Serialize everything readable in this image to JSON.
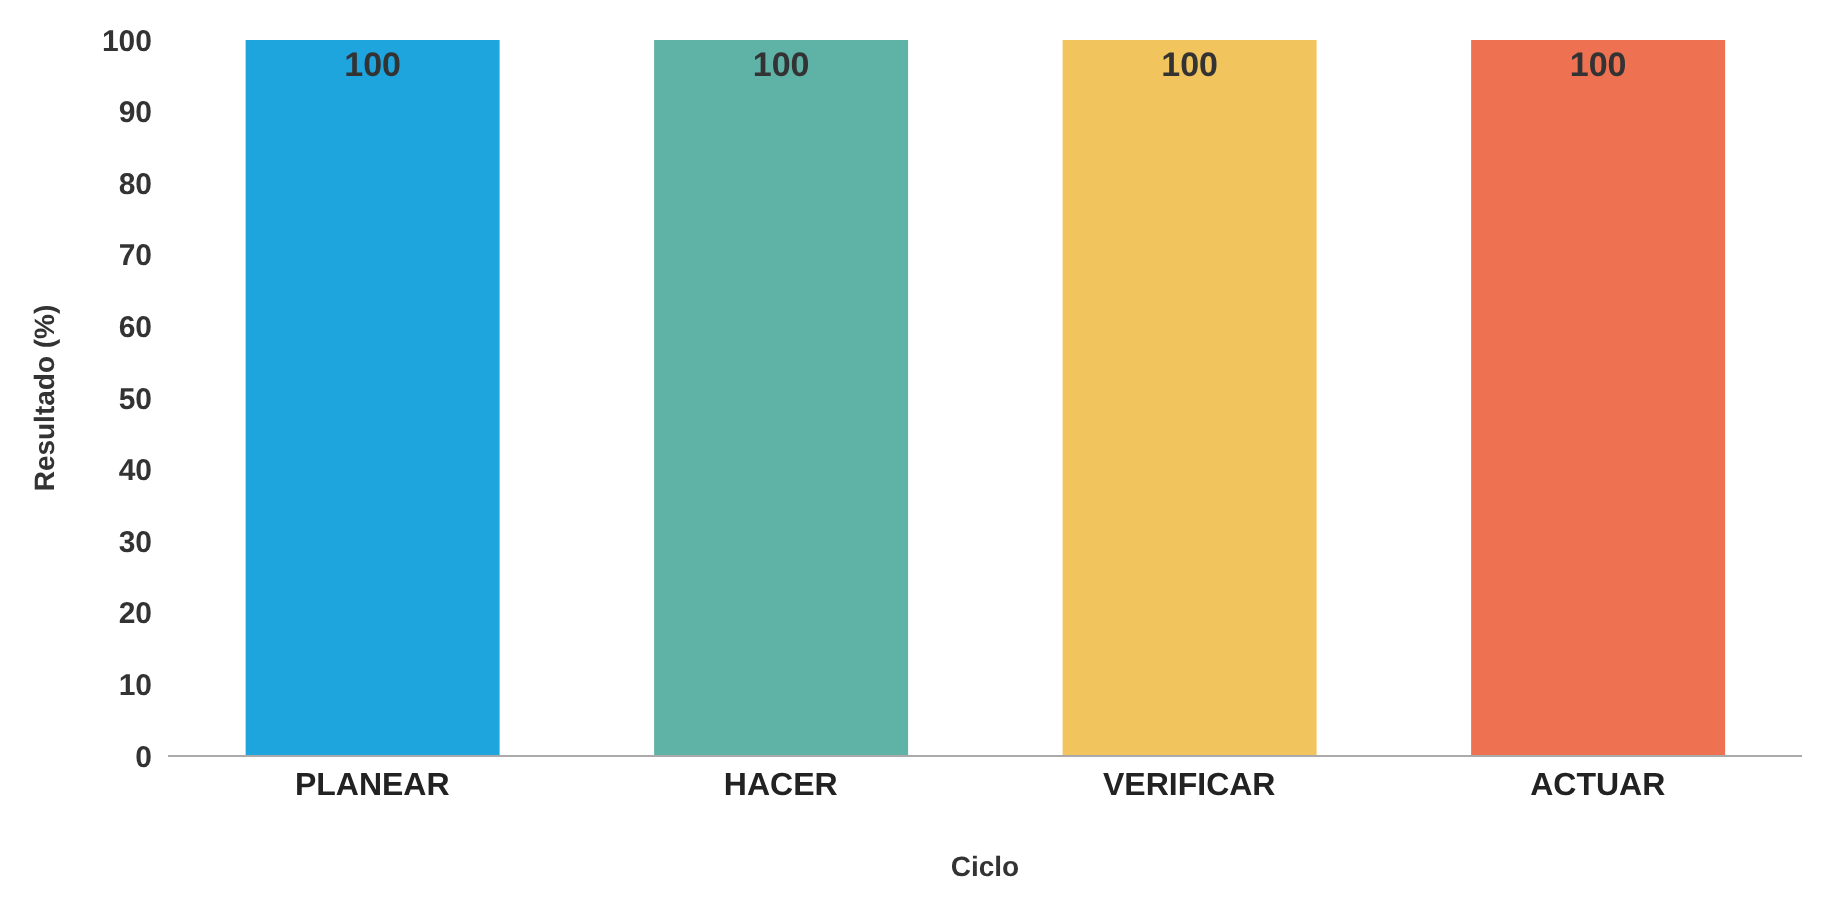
{
  "chart_data": {
    "type": "bar",
    "xlabel": "Ciclo",
    "ylabel": "Resultado (%)",
    "categories": [
      "PLANEAR",
      "HACER",
      "VERIFICAR",
      "ACTUAR"
    ],
    "values": [
      100,
      100,
      100,
      100
    ],
    "colors": [
      "#1ea5de",
      "#5fb3a6",
      "#f2c45e",
      "#ee7152"
    ],
    "ylim": [
      0,
      100
    ],
    "yticks": [
      0,
      10,
      20,
      30,
      40,
      50,
      60,
      70,
      80,
      90,
      100
    ],
    "grid": false,
    "data_labels": true
  }
}
